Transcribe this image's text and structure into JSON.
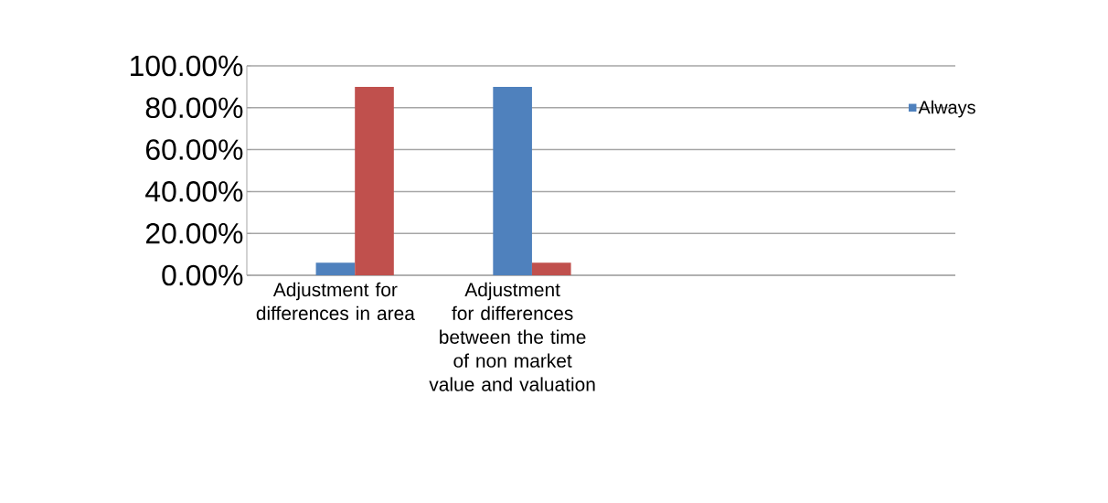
{
  "chart_data": {
    "type": "bar",
    "categories": [
      "Adjustment for differences in area",
      "Adjustment for differences between the time of non market value and valuation",
      null,
      null
    ],
    "series": [
      {
        "name": "Always",
        "color": "#4f81bd",
        "values": [
          6,
          90,
          null,
          null
        ]
      },
      {
        "color": "#c0504d",
        "values": [
          90,
          6,
          null,
          null
        ]
      }
    ],
    "ylim": [
      0,
      100
    ],
    "yticks": [
      {
        "value": 0,
        "label": "0.00%"
      },
      {
        "value": 20,
        "label": "20.00%"
      },
      {
        "value": 40,
        "label": "40.00%"
      },
      {
        "value": 60,
        "label": "60.00%"
      },
      {
        "value": 80,
        "label": "80.00%"
      },
      {
        "value": 100,
        "label": "100.00%"
      }
    ],
    "grid": "y",
    "legend": "right"
  }
}
